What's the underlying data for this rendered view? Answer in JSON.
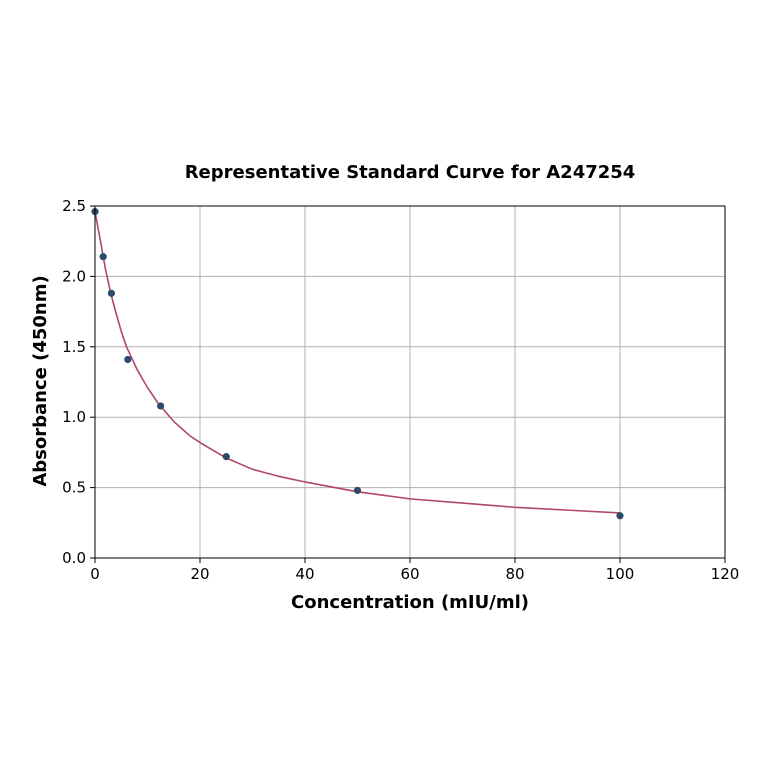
{
  "chart_data": {
    "type": "scatter",
    "title": "Representative Standard Curve for A247254",
    "xlabel": "Concentration (mIU/ml)",
    "ylabel": "Absorbance (450nm)",
    "xlim": [
      0,
      120
    ],
    "ylim": [
      0,
      2.5
    ],
    "x_ticks": [
      0,
      20,
      40,
      60,
      80,
      100,
      120
    ],
    "y_ticks": [
      0.0,
      0.5,
      1.0,
      1.5,
      2.0,
      2.5
    ],
    "x_tick_labels": [
      "0",
      "20",
      "40",
      "60",
      "80",
      "100",
      "120"
    ],
    "y_tick_labels": [
      "0.0",
      "0.5",
      "1.0",
      "1.5",
      "2.0",
      "2.5"
    ],
    "grid": true,
    "series": [
      {
        "kind": "points",
        "color": "#2e4a6b",
        "x": [
          0,
          1.56,
          3.13,
          6.25,
          12.5,
          25,
          50,
          100
        ],
        "y": [
          2.46,
          2.14,
          1.88,
          1.41,
          1.08,
          0.72,
          0.48,
          0.3
        ]
      },
      {
        "kind": "fit-curve",
        "color": "#b0476a",
        "x": [
          0,
          1,
          2,
          3,
          4,
          5,
          6,
          8,
          10,
          12,
          15,
          18,
          20,
          25,
          30,
          35,
          40,
          50,
          60,
          70,
          80,
          90,
          100
        ],
        "y": [
          2.46,
          2.26,
          2.05,
          1.88,
          1.74,
          1.61,
          1.5,
          1.34,
          1.21,
          1.1,
          0.97,
          0.87,
          0.82,
          0.71,
          0.63,
          0.58,
          0.54,
          0.47,
          0.42,
          0.39,
          0.36,
          0.34,
          0.32
        ]
      }
    ]
  }
}
